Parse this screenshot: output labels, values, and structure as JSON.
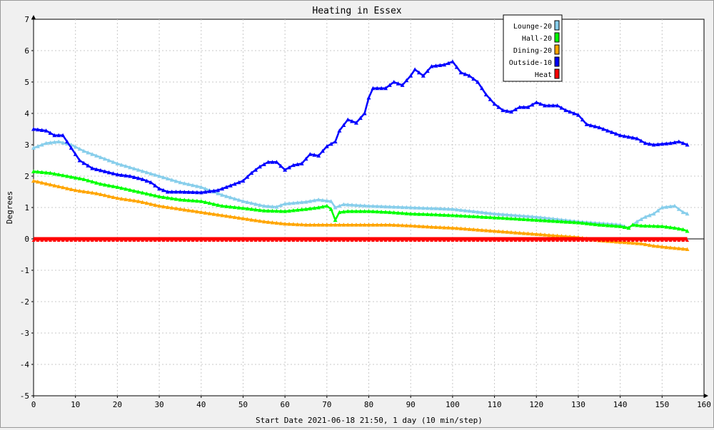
{
  "chart_data": {
    "type": "line",
    "title": "Heating in Essex",
    "xlabel": "Start Date 2021-06-18 21:50, 1 day (10 min/step)",
    "ylabel": "Degrees",
    "xlim": [
      0,
      160
    ],
    "ylim": [
      -5,
      7
    ],
    "x_ticks": [
      0,
      10,
      20,
      30,
      40,
      50,
      60,
      70,
      80,
      90,
      100,
      110,
      120,
      130,
      140,
      150,
      160
    ],
    "y_ticks": [
      -5,
      -4,
      -3,
      -2,
      -1,
      0,
      1,
      2,
      3,
      4,
      5,
      6,
      7
    ],
    "grid": true,
    "legend_position": "top-right",
    "marker": "triangle",
    "series": [
      {
        "name": "Lounge-20",
        "color": "#87ceeb",
        "points": [
          [
            0,
            2.9
          ],
          [
            3,
            3.05
          ],
          [
            6,
            3.1
          ],
          [
            9,
            3.0
          ],
          [
            12,
            2.8
          ],
          [
            16,
            2.6
          ],
          [
            20,
            2.4
          ],
          [
            25,
            2.2
          ],
          [
            30,
            2.0
          ],
          [
            35,
            1.8
          ],
          [
            40,
            1.65
          ],
          [
            45,
            1.4
          ],
          [
            50,
            1.2
          ],
          [
            55,
            1.05
          ],
          [
            58,
            1.02
          ],
          [
            60,
            1.12
          ],
          [
            65,
            1.18
          ],
          [
            68,
            1.25
          ],
          [
            71,
            1.2
          ],
          [
            72,
            1.0
          ],
          [
            74,
            1.1
          ],
          [
            80,
            1.05
          ],
          [
            90,
            1.0
          ],
          [
            100,
            0.95
          ],
          [
            110,
            0.8
          ],
          [
            120,
            0.7
          ],
          [
            130,
            0.55
          ],
          [
            135,
            0.5
          ],
          [
            140,
            0.45
          ],
          [
            142,
            0.35
          ],
          [
            144,
            0.55
          ],
          [
            146,
            0.7
          ],
          [
            148,
            0.8
          ],
          [
            150,
            1.0
          ],
          [
            153,
            1.05
          ],
          [
            155,
            0.85
          ],
          [
            156,
            0.8
          ]
        ]
      },
      {
        "name": "Hall-20",
        "color": "#00ff00",
        "points": [
          [
            0,
            2.15
          ],
          [
            4,
            2.1
          ],
          [
            8,
            2.0
          ],
          [
            12,
            1.9
          ],
          [
            16,
            1.75
          ],
          [
            20,
            1.65
          ],
          [
            25,
            1.5
          ],
          [
            30,
            1.35
          ],
          [
            35,
            1.25
          ],
          [
            40,
            1.2
          ],
          [
            45,
            1.05
          ],
          [
            50,
            0.98
          ],
          [
            55,
            0.9
          ],
          [
            60,
            0.88
          ],
          [
            65,
            0.95
          ],
          [
            68,
            1.0
          ],
          [
            70,
            1.05
          ],
          [
            71,
            0.95
          ],
          [
            72,
            0.6
          ],
          [
            73,
            0.85
          ],
          [
            75,
            0.88
          ],
          [
            80,
            0.88
          ],
          [
            85,
            0.85
          ],
          [
            90,
            0.8
          ],
          [
            95,
            0.78
          ],
          [
            100,
            0.75
          ],
          [
            110,
            0.68
          ],
          [
            120,
            0.6
          ],
          [
            130,
            0.52
          ],
          [
            135,
            0.45
          ],
          [
            140,
            0.4
          ],
          [
            142,
            0.35
          ],
          [
            143,
            0.45
          ],
          [
            145,
            0.42
          ],
          [
            150,
            0.4
          ],
          [
            153,
            0.35
          ],
          [
            155,
            0.3
          ],
          [
            156,
            0.25
          ]
        ]
      },
      {
        "name": "Dining-20",
        "color": "#ffa500",
        "points": [
          [
            0,
            1.85
          ],
          [
            5,
            1.7
          ],
          [
            10,
            1.55
          ],
          [
            15,
            1.45
          ],
          [
            20,
            1.3
          ],
          [
            25,
            1.2
          ],
          [
            30,
            1.05
          ],
          [
            35,
            0.95
          ],
          [
            40,
            0.85
          ],
          [
            45,
            0.75
          ],
          [
            50,
            0.65
          ],
          [
            55,
            0.55
          ],
          [
            60,
            0.48
          ],
          [
            65,
            0.45
          ],
          [
            70,
            0.45
          ],
          [
            75,
            0.45
          ],
          [
            80,
            0.45
          ],
          [
            85,
            0.45
          ],
          [
            90,
            0.42
          ],
          [
            95,
            0.38
          ],
          [
            100,
            0.35
          ],
          [
            105,
            0.3
          ],
          [
            110,
            0.25
          ],
          [
            115,
            0.2
          ],
          [
            120,
            0.15
          ],
          [
            125,
            0.1
          ],
          [
            130,
            0.05
          ],
          [
            135,
            -0.05
          ],
          [
            140,
            -0.1
          ],
          [
            145,
            -0.15
          ],
          [
            148,
            -0.22
          ],
          [
            152,
            -0.28
          ],
          [
            156,
            -0.33
          ]
        ]
      },
      {
        "name": "Outside-10",
        "color": "#0000ff",
        "points": [
          [
            0,
            3.5
          ],
          [
            3,
            3.45
          ],
          [
            5,
            3.3
          ],
          [
            7,
            3.3
          ],
          [
            9,
            2.9
          ],
          [
            11,
            2.5
          ],
          [
            14,
            2.25
          ],
          [
            17,
            2.15
          ],
          [
            20,
            2.05
          ],
          [
            23,
            2.0
          ],
          [
            26,
            1.9
          ],
          [
            28,
            1.8
          ],
          [
            30,
            1.6
          ],
          [
            32,
            1.5
          ],
          [
            35,
            1.5
          ],
          [
            40,
            1.48
          ],
          [
            44,
            1.55
          ],
          [
            46,
            1.65
          ],
          [
            48,
            1.75
          ],
          [
            50,
            1.85
          ],
          [
            52,
            2.1
          ],
          [
            54,
            2.3
          ],
          [
            56,
            2.45
          ],
          [
            58,
            2.45
          ],
          [
            60,
            2.2
          ],
          [
            62,
            2.35
          ],
          [
            64,
            2.4
          ],
          [
            66,
            2.7
          ],
          [
            68,
            2.65
          ],
          [
            70,
            2.95
          ],
          [
            72,
            3.1
          ],
          [
            73,
            3.45
          ],
          [
            75,
            3.8
          ],
          [
            77,
            3.7
          ],
          [
            79,
            4.0
          ],
          [
            80,
            4.5
          ],
          [
            81,
            4.8
          ],
          [
            84,
            4.8
          ],
          [
            86,
            5.0
          ],
          [
            88,
            4.9
          ],
          [
            90,
            5.2
          ],
          [
            91,
            5.4
          ],
          [
            93,
            5.2
          ],
          [
            95,
            5.5
          ],
          [
            98,
            5.55
          ],
          [
            100,
            5.65
          ],
          [
            102,
            5.3
          ],
          [
            104,
            5.2
          ],
          [
            106,
            5.0
          ],
          [
            108,
            4.6
          ],
          [
            110,
            4.3
          ],
          [
            112,
            4.1
          ],
          [
            114,
            4.05
          ],
          [
            116,
            4.2
          ],
          [
            118,
            4.2
          ],
          [
            120,
            4.35
          ],
          [
            122,
            4.25
          ],
          [
            125,
            4.25
          ],
          [
            127,
            4.1
          ],
          [
            130,
            3.95
          ],
          [
            132,
            3.65
          ],
          [
            135,
            3.55
          ],
          [
            138,
            3.4
          ],
          [
            140,
            3.3
          ],
          [
            144,
            3.2
          ],
          [
            146,
            3.05
          ],
          [
            148,
            3.0
          ],
          [
            152,
            3.05
          ],
          [
            154,
            3.1
          ],
          [
            156,
            3.0
          ]
        ]
      },
      {
        "name": "Heat",
        "color": "#ff0000",
        "points": [
          [
            0,
            0
          ],
          [
            156,
            0
          ]
        ]
      }
    ]
  }
}
